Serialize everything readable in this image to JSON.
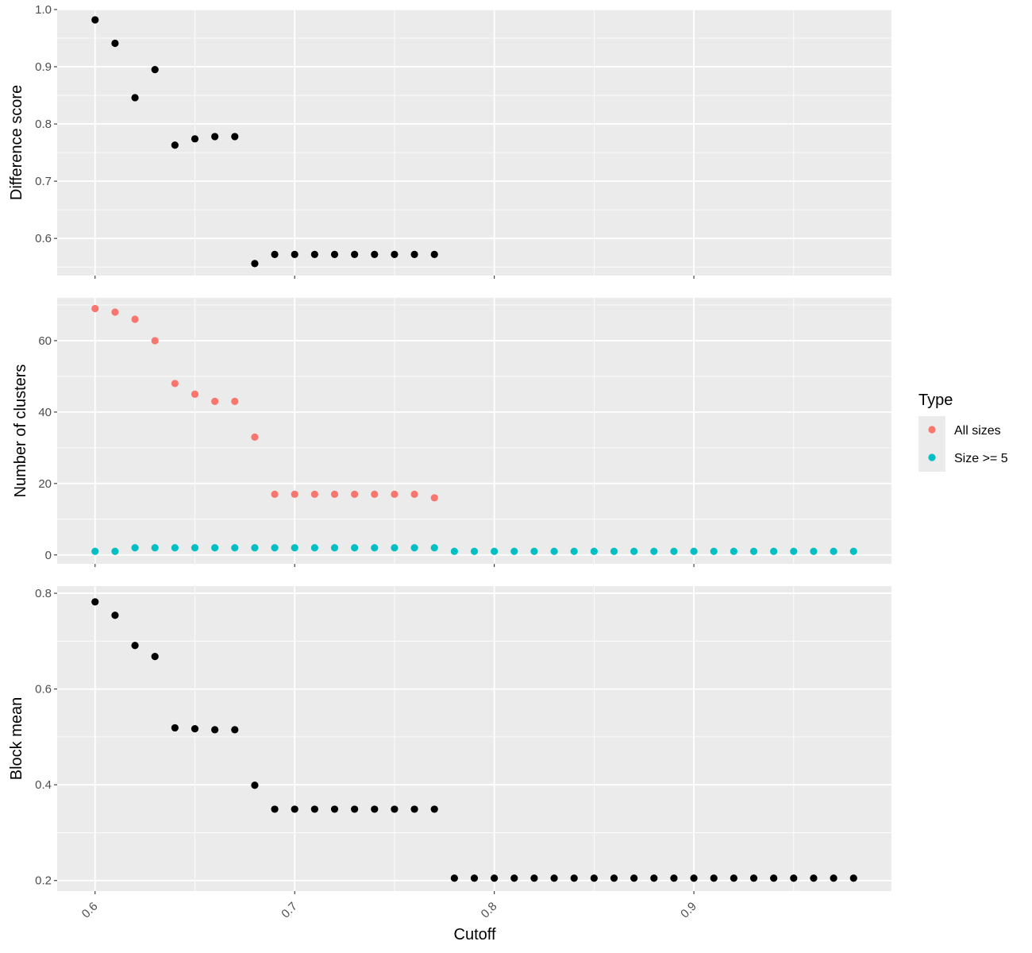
{
  "chart_data": {
    "type": "scatter",
    "xlabel": "Cutoff",
    "x_ticks": [
      0.6,
      0.7,
      0.8,
      0.9
    ],
    "x_tick_labels": [
      "0.6",
      "0.7",
      "0.8",
      "0.9"
    ],
    "xlim": [
      0.581,
      0.999
    ],
    "grid": true,
    "legend": {
      "title": "Type",
      "position": "right",
      "entries": [
        {
          "name": "All sizes",
          "color": "#F8766D"
        },
        {
          "name": "Size >= 5",
          "color": "#00BFC4"
        }
      ]
    },
    "panels": [
      {
        "ylabel": "Difference score",
        "ylim": [
          0.535,
          1.0
        ],
        "y_ticks": [
          0.6,
          0.7,
          0.8,
          0.9,
          1.0
        ],
        "y_tick_labels": [
          "0.6",
          "0.7",
          "0.8",
          "0.9",
          "1.0"
        ],
        "series": [
          {
            "color": "#000000",
            "x": [
              0.6,
              0.61,
              0.62,
              0.63,
              0.64,
              0.65,
              0.66,
              0.67,
              0.68,
              0.69,
              0.7,
              0.71,
              0.72,
              0.73,
              0.74,
              0.75,
              0.76,
              0.77
            ],
            "y": [
              0.982,
              0.941,
              0.846,
              0.895,
              0.763,
              0.774,
              0.778,
              0.778,
              0.556,
              0.572,
              0.572,
              0.572,
              0.572,
              0.572,
              0.572,
              0.572,
              0.572,
              0.572
            ]
          }
        ]
      },
      {
        "ylabel": "Number of clusters",
        "ylim": [
          -2.5,
          72.0
        ],
        "y_ticks": [
          0,
          20,
          40,
          60
        ],
        "y_tick_labels": [
          "0",
          "20",
          "40",
          "60"
        ],
        "series": [
          {
            "name": "All sizes",
            "color": "#F8766D",
            "x": [
              0.6,
              0.61,
              0.62,
              0.63,
              0.64,
              0.65,
              0.66,
              0.67,
              0.68,
              0.69,
              0.7,
              0.71,
              0.72,
              0.73,
              0.74,
              0.75,
              0.76,
              0.77
            ],
            "y": [
              69,
              68,
              66,
              60,
              48,
              45,
              43,
              43,
              33,
              17,
              17,
              17,
              17,
              17,
              17,
              17,
              17,
              16
            ]
          },
          {
            "name": "Size >= 5",
            "color": "#00BFC4",
            "x": [
              0.6,
              0.61,
              0.62,
              0.63,
              0.64,
              0.65,
              0.66,
              0.67,
              0.68,
              0.69,
              0.7,
              0.71,
              0.72,
              0.73,
              0.74,
              0.75,
              0.76,
              0.77,
              0.78,
              0.79,
              0.8,
              0.81,
              0.82,
              0.83,
              0.84,
              0.85,
              0.86,
              0.87,
              0.88,
              0.89,
              0.9,
              0.91,
              0.92,
              0.93,
              0.94,
              0.95,
              0.96,
              0.97,
              0.98
            ],
            "y": [
              1,
              1,
              2,
              2,
              2,
              2,
              2,
              2,
              2,
              2,
              2,
              2,
              2,
              2,
              2,
              2,
              2,
              2,
              1,
              1,
              1,
              1,
              1,
              1,
              1,
              1,
              1,
              1,
              1,
              1,
              1,
              1,
              1,
              1,
              1,
              1,
              1,
              1,
              1
            ]
          }
        ]
      },
      {
        "ylabel": "Block mean",
        "ylim": [
          0.178,
          0.815
        ],
        "y_ticks": [
          0.2,
          0.4,
          0.6,
          0.8
        ],
        "y_tick_labels": [
          "0.2",
          "0.4",
          "0.6",
          "0.8"
        ],
        "series": [
          {
            "color": "#000000",
            "x": [
              0.6,
              0.61,
              0.62,
              0.63,
              0.64,
              0.65,
              0.66,
              0.67,
              0.68,
              0.69,
              0.7,
              0.71,
              0.72,
              0.73,
              0.74,
              0.75,
              0.76,
              0.77,
              0.78,
              0.79,
              0.8,
              0.81,
              0.82,
              0.83,
              0.84,
              0.85,
              0.86,
              0.87,
              0.88,
              0.89,
              0.9,
              0.91,
              0.92,
              0.93,
              0.94,
              0.95,
              0.96,
              0.97,
              0.98
            ],
            "y": [
              0.782,
              0.754,
              0.691,
              0.668,
              0.519,
              0.517,
              0.515,
              0.515,
              0.399,
              0.349,
              0.349,
              0.349,
              0.349,
              0.349,
              0.349,
              0.349,
              0.349,
              0.349,
              0.205,
              0.205,
              0.205,
              0.205,
              0.205,
              0.205,
              0.205,
              0.205,
              0.205,
              0.205,
              0.205,
              0.205,
              0.205,
              0.205,
              0.205,
              0.205,
              0.205,
              0.205,
              0.205,
              0.205,
              0.205
            ]
          }
        ]
      }
    ]
  }
}
